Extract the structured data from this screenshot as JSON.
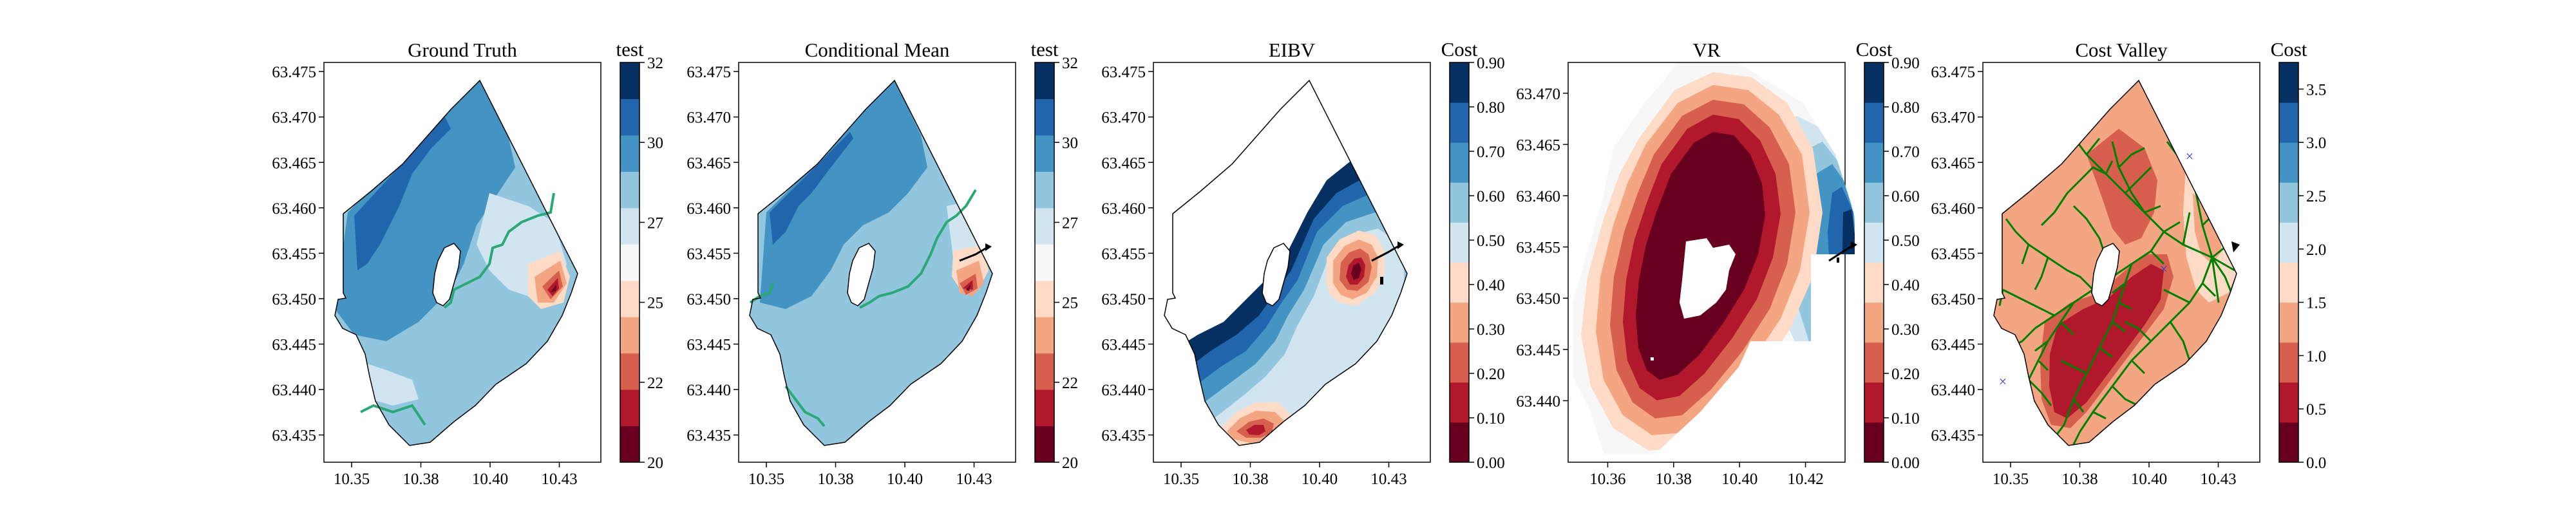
{
  "figure": {
    "panels": [
      {
        "title": "Ground Truth"
      },
      {
        "title": "Conditional Mean"
      },
      {
        "title": "EIBV"
      },
      {
        "title": "VR"
      },
      {
        "title": "Cost Valley"
      }
    ]
  },
  "chart_data": [
    {
      "type": "heatmap",
      "title": "Ground Truth",
      "x_ticks": [
        10.35,
        10.375,
        10.4,
        10.425
      ],
      "xlim": [
        10.34,
        10.44
      ],
      "y_ticks": [
        63.435,
        63.44,
        63.445,
        63.45,
        63.455,
        63.46,
        63.465,
        63.47,
        63.475
      ],
      "ylim": [
        63.432,
        63.476
      ],
      "colorbar": {
        "label": "test",
        "ticks": [
          20.0,
          22.4,
          24.8,
          27.2,
          29.6,
          32.0
        ],
        "range": [
          20.0,
          32.0
        ],
        "colors": [
          "#67001f",
          "#b2182b",
          "#d6604d",
          "#f4a582",
          "#fddbc7",
          "#f7f7f7",
          "#d1e5f0",
          "#92c5de",
          "#4393c3",
          "#2166ac",
          "#053061"
        ]
      },
      "contour_line": {
        "level": 27.2,
        "color": "#2aa876"
      }
    },
    {
      "type": "heatmap",
      "title": "Conditional Mean",
      "x_ticks": [
        10.35,
        10.375,
        10.4,
        10.425
      ],
      "xlim": [
        10.34,
        10.44
      ],
      "y_ticks": [
        63.435,
        63.44,
        63.445,
        63.45,
        63.455,
        63.46,
        63.465,
        63.47,
        63.475
      ],
      "ylim": [
        63.432,
        63.476
      ],
      "colorbar": {
        "label": "test",
        "ticks": [
          20.0,
          22.4,
          24.8,
          27.2,
          29.6,
          32.0
        ],
        "range": [
          20.0,
          32.0
        ],
        "colors": [
          "#67001f",
          "#b2182b",
          "#d6604d",
          "#f4a582",
          "#fddbc7",
          "#f7f7f7",
          "#d1e5f0",
          "#92c5de",
          "#4393c3",
          "#2166ac",
          "#053061"
        ]
      },
      "contour_line": {
        "level": 27.2,
        "color": "#2aa876"
      }
    },
    {
      "type": "heatmap",
      "title": "EIBV",
      "x_ticks": [
        10.35,
        10.375,
        10.4,
        10.425
      ],
      "xlim": [
        10.34,
        10.44
      ],
      "y_ticks": [
        63.435,
        63.44,
        63.445,
        63.45,
        63.455,
        63.46,
        63.465,
        63.47,
        63.475
      ],
      "ylim": [
        63.432,
        63.476
      ],
      "colorbar": {
        "label": "Cost",
        "ticks": [
          0.0,
          0.1,
          0.2,
          0.3,
          0.4,
          0.5,
          0.6,
          0.7,
          0.8,
          0.9
        ],
        "range": [
          0.0,
          0.9
        ],
        "colors": [
          "#67001f",
          "#b2182b",
          "#d6604d",
          "#f4a582",
          "#fddbc7",
          "#d1e5f0",
          "#92c5de",
          "#4393c3",
          "#2166ac",
          "#053061"
        ]
      }
    },
    {
      "type": "heatmap",
      "title": "VR",
      "x_ticks": [
        10.36,
        10.38,
        10.4,
        10.42
      ],
      "xlim": [
        10.348,
        10.432
      ],
      "y_ticks": [
        63.44,
        63.445,
        63.45,
        63.455,
        63.46,
        63.465,
        63.47
      ],
      "ylim": [
        63.434,
        63.473
      ],
      "colorbar": {
        "label": "Cost",
        "ticks": [
          0.0,
          0.1,
          0.2,
          0.3,
          0.4,
          0.5,
          0.6,
          0.7,
          0.8,
          0.9
        ],
        "range": [
          0.0,
          0.9
        ],
        "colors": [
          "#67001f",
          "#b2182b",
          "#d6604d",
          "#f4a582",
          "#fddbc7",
          "#d1e5f0",
          "#92c5de",
          "#4393c3",
          "#2166ac",
          "#053061"
        ]
      }
    },
    {
      "type": "heatmap",
      "title": "Cost Valley",
      "x_ticks": [
        10.35,
        10.375,
        10.4,
        10.425
      ],
      "xlim": [
        10.34,
        10.44
      ],
      "y_ticks": [
        63.435,
        63.44,
        63.445,
        63.45,
        63.455,
        63.46,
        63.465,
        63.47,
        63.475
      ],
      "ylim": [
        63.432,
        63.476
      ],
      "colorbar": {
        "label": "Cost",
        "ticks": [
          0.0,
          0.5,
          1.0,
          1.5,
          2.0,
          2.5,
          3.0,
          3.5
        ],
        "range": [
          0.0,
          3.75
        ],
        "colors": [
          "#67001f",
          "#b2182b",
          "#d6604d",
          "#f4a582",
          "#fddbc7",
          "#d1e5f0",
          "#92c5de",
          "#4393c3",
          "#2166ac",
          "#053061"
        ]
      },
      "overlay": {
        "tree_color": "#008000",
        "marker_color": "#3a3ad0"
      }
    }
  ]
}
